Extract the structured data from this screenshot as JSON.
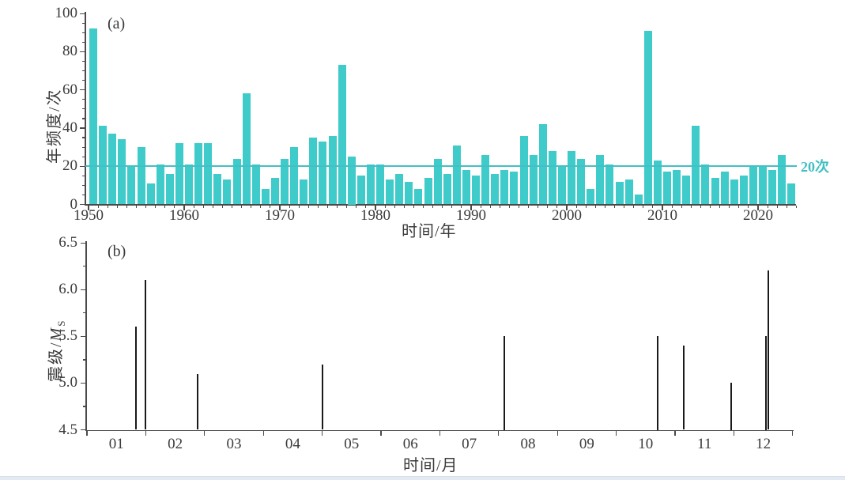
{
  "chart_data": [
    {
      "type": "bar",
      "panel_label": "(a)",
      "xlabel": "时间/年",
      "ylabel": "年频度/次",
      "start_year": 1950,
      "end_year": 2023,
      "ylim": [
        0,
        100
      ],
      "yticks": [
        0,
        20,
        40,
        60,
        80,
        100
      ],
      "xticks": [
        1950,
        1960,
        1970,
        1980,
        1990,
        2000,
        2010,
        2020
      ],
      "grid": false,
      "bar_color": "#3fcbca",
      "ref_line": {
        "value": 20,
        "label": "20次",
        "color": "#43bfc4"
      },
      "values": [
        92,
        41,
        37,
        34,
        20,
        30,
        11,
        21,
        16,
        32,
        21,
        32,
        32,
        16,
        13,
        24,
        58,
        21,
        8,
        14,
        24,
        30,
        13,
        35,
        33,
        36,
        73,
        25,
        15,
        21,
        21,
        13,
        16,
        12,
        8,
        14,
        24,
        16,
        31,
        18,
        15,
        26,
        16,
        18,
        17,
        36,
        26,
        42,
        28,
        20,
        28,
        24,
        8,
        26,
        21,
        12,
        13,
        5,
        91,
        23,
        17,
        18,
        15,
        41,
        21,
        14,
        17,
        13,
        15,
        20,
        20,
        18,
        26,
        11
      ]
    },
    {
      "type": "stem",
      "panel_label": "(b)",
      "xlabel": "时间/月",
      "ylabel_prefix": "震级/",
      "ylabel_symbol": "M",
      "ylabel_subscript": "S",
      "ylim": [
        4.5,
        6.5
      ],
      "yticks": [
        "4.5",
        "5.0",
        "5.5",
        "6.0",
        "6.5"
      ],
      "month_labels": [
        "01",
        "02",
        "03",
        "04",
        "05",
        "06",
        "07",
        "08",
        "09",
        "10",
        "11",
        "12"
      ],
      "grid": false,
      "stem_color": "#1a1a1a",
      "events": [
        {
          "month": 1.33,
          "magnitude": 5.6
        },
        {
          "month": 1.49,
          "magnitude": 6.1
        },
        {
          "month": 2.38,
          "magnitude": 5.1
        },
        {
          "month": 4.5,
          "magnitude": 5.2
        },
        {
          "month": 7.6,
          "magnitude": 5.5
        },
        {
          "month": 10.2,
          "magnitude": 5.5
        },
        {
          "month": 10.65,
          "magnitude": 5.4
        },
        {
          "month": 11.45,
          "magnitude": 5.0
        },
        {
          "month": 12.04,
          "magnitude": 5.5
        },
        {
          "month": 12.09,
          "magnitude": 6.2
        }
      ]
    }
  ]
}
